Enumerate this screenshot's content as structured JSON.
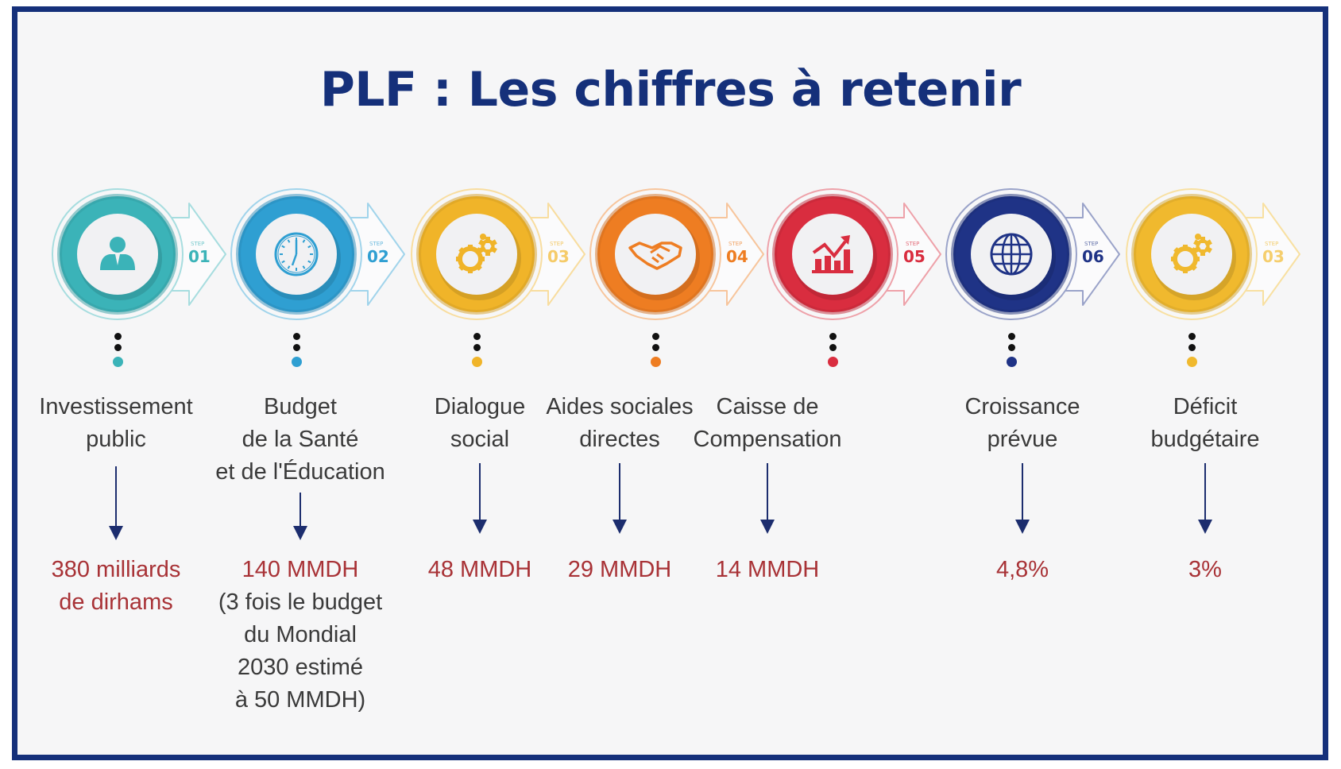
{
  "title": "PLF : Les chiffres à retenir",
  "colors": {
    "frame": "#15307a",
    "title": "#15307a",
    "value": "#a83236",
    "arrow": "#1c2d6e"
  },
  "steps": [
    {
      "step_tag": "STEP",
      "number": "01",
      "icon": "businessman-icon",
      "color": "#3bb3b8",
      "label_lines": [
        "Investissement",
        "public"
      ],
      "value_lines": [
        "380 milliards",
        "de dirhams"
      ],
      "note_lines": []
    },
    {
      "step_tag": "STEP",
      "number": "02",
      "icon": "clock-icon",
      "color": "#2f9fd2",
      "label_lines": [
        "Budget",
        "de la Santé",
        "et de l'Éducation"
      ],
      "value_lines": [
        "140 MMDH"
      ],
      "note_lines": [
        "(3 fois le budget",
        "du Mondial",
        "2030 estimé",
        "à 50 MMDH)"
      ]
    },
    {
      "step_tag": "STEP",
      "number": "03",
      "icon": "gears-icon",
      "color": "#f0b429",
      "label_lines": [
        "Dialogue",
        "social"
      ],
      "value_lines": [
        "48 MMDH"
      ],
      "note_lines": []
    },
    {
      "step_tag": "STEP",
      "number": "04",
      "icon": "handshake-icon",
      "color": "#ee7d22",
      "label_lines": [
        "Aides sociales",
        "directes"
      ],
      "value_lines": [
        "29 MMDH"
      ],
      "note_lines": []
    },
    {
      "step_tag": "STEP",
      "number": "05",
      "icon": "growth-chart-icon",
      "color": "#d92d3f",
      "label_lines": [
        "Caisse de",
        "Compensation"
      ],
      "value_lines": [
        "14 MMDH"
      ],
      "note_lines": []
    },
    {
      "step_tag": "STEP",
      "number": "06",
      "icon": "globe-icon",
      "color": "#1f3386",
      "label_lines": [
        "Croissance",
        "prévue"
      ],
      "value_lines": [
        "4,8%"
      ],
      "note_lines": []
    },
    {
      "step_tag": "STEP",
      "number": "03",
      "icon": "gears-icon",
      "color": "#f0b92e",
      "label_lines": [
        "Déficit",
        "budgétaire"
      ],
      "value_lines": [
        "3%"
      ],
      "note_lines": []
    }
  ]
}
